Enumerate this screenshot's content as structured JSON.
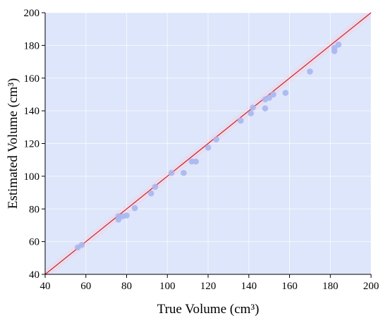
{
  "chart_data": {
    "type": "scatter",
    "xlabel": "True Volume (cm³)",
    "ylabel": "Estimated Volume (cm³)",
    "xlim": [
      40,
      200
    ],
    "ylim": [
      40,
      200
    ],
    "xticks": [
      "40",
      "60",
      "80",
      "100",
      "120",
      "140",
      "160",
      "180",
      "200"
    ],
    "yticks": [
      "40",
      "60",
      "80",
      "100",
      "120",
      "140",
      "160",
      "180",
      "200"
    ],
    "grid": true,
    "colors": {
      "background": "#dde6fb",
      "points": "#a9b7f0",
      "identity_line": "#cc2222",
      "band": "#f3d3e6"
    },
    "reference_line": {
      "type": "identity",
      "from": [
        40,
        40
      ],
      "to": [
        200,
        200
      ]
    },
    "points": [
      {
        "x": 56,
        "y": 56.5
      },
      {
        "x": 58,
        "y": 58
      },
      {
        "x": 76,
        "y": 73.5
      },
      {
        "x": 76,
        "y": 75.5
      },
      {
        "x": 78,
        "y": 75.5
      },
      {
        "x": 80,
        "y": 76
      },
      {
        "x": 84,
        "y": 80.5
      },
      {
        "x": 92,
        "y": 89.5
      },
      {
        "x": 94,
        "y": 93.5
      },
      {
        "x": 102,
        "y": 102
      },
      {
        "x": 108,
        "y": 102
      },
      {
        "x": 112,
        "y": 109
      },
      {
        "x": 114,
        "y": 109
      },
      {
        "x": 120,
        "y": 117.5
      },
      {
        "x": 124,
        "y": 122.5
      },
      {
        "x": 136,
        "y": 134
      },
      {
        "x": 141,
        "y": 138.5
      },
      {
        "x": 142,
        "y": 142
      },
      {
        "x": 148,
        "y": 141.5
      },
      {
        "x": 148,
        "y": 147
      },
      {
        "x": 150,
        "y": 148
      },
      {
        "x": 152,
        "y": 150
      },
      {
        "x": 158,
        "y": 151
      },
      {
        "x": 170,
        "y": 164
      },
      {
        "x": 182,
        "y": 176.5
      },
      {
        "x": 182,
        "y": 178.5
      },
      {
        "x": 184,
        "y": 180.5
      }
    ]
  }
}
